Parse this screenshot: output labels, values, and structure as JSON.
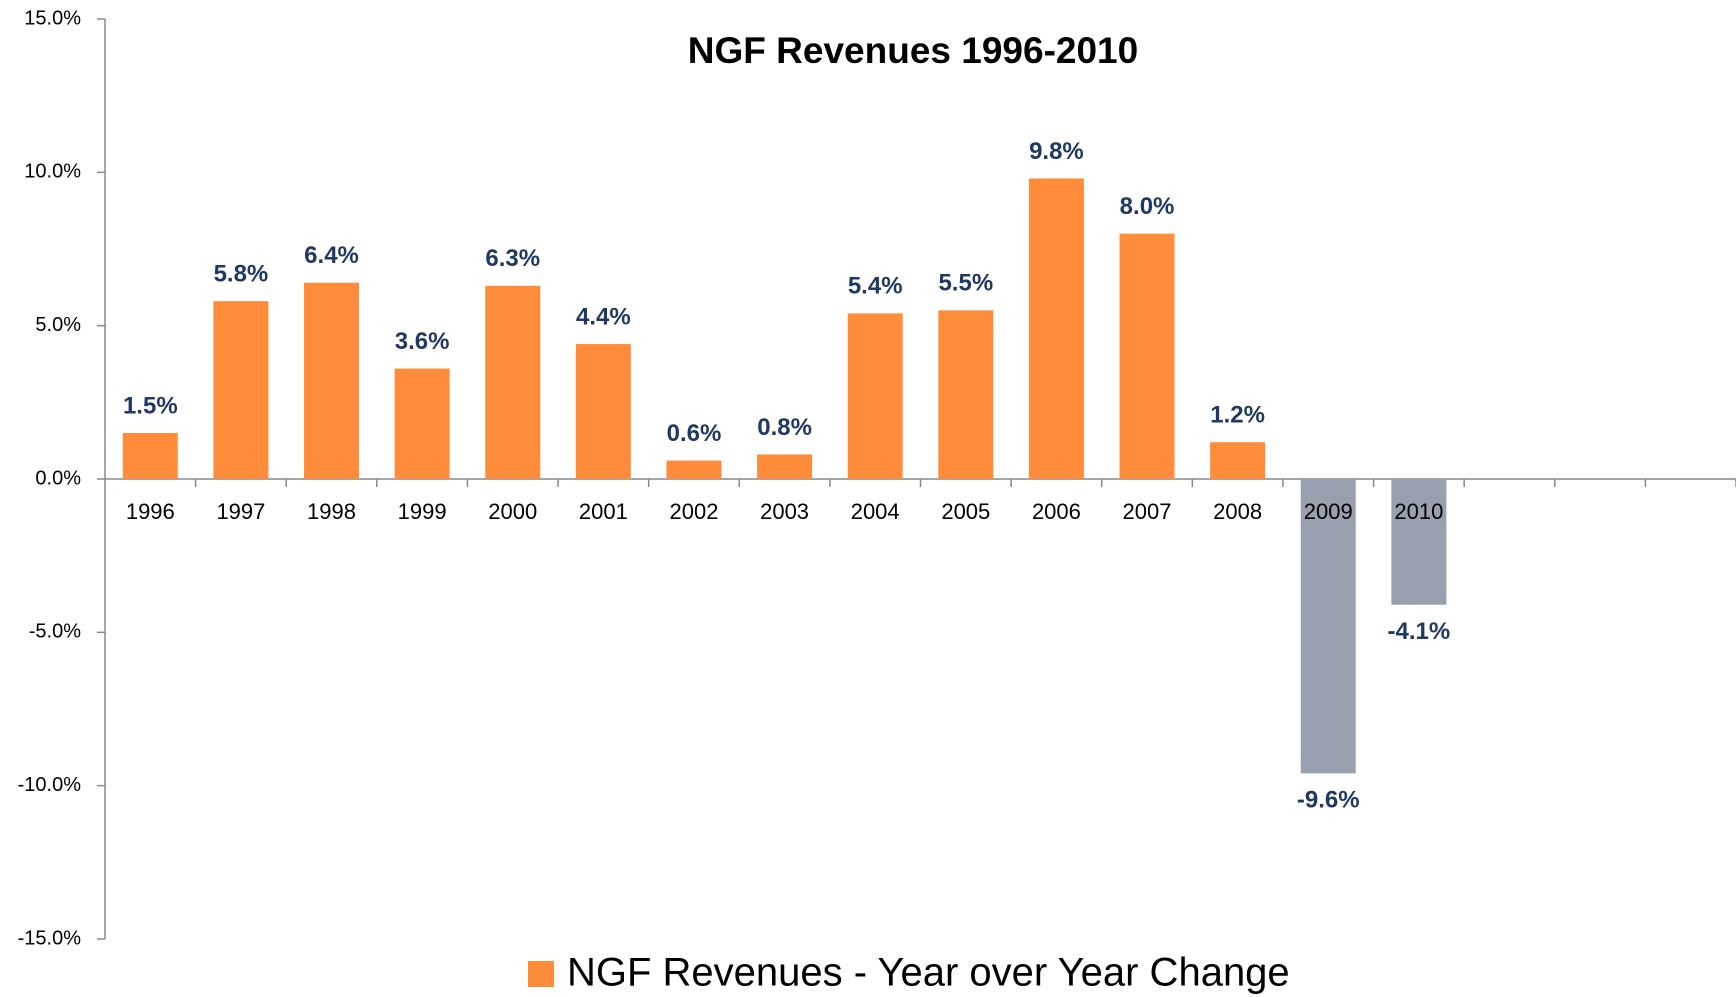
{
  "chart_data": {
    "type": "bar",
    "title": "NGF Revenues  1996-2010",
    "categories": [
      "1996",
      "1997",
      "1998",
      "1999",
      "2000",
      "2001",
      "2002",
      "2003",
      "2004",
      "2005",
      "2006",
      "2007",
      "2008",
      "2009",
      "2010",
      null,
      null,
      null
    ],
    "series": [
      {
        "name": "NGF Revenues - Year over Year Change",
        "color": "#FF8C3A",
        "negative_color": "#98A0AE",
        "values": [
          1.5,
          5.8,
          6.4,
          3.6,
          6.3,
          4.4,
          0.6,
          0.8,
          5.4,
          5.5,
          9.8,
          8.0,
          1.2,
          -9.6,
          -4.1,
          null,
          null,
          null
        ],
        "value_labels": [
          "1.5%",
          "5.8%",
          "6.4%",
          "3.6%",
          "6.3%",
          "4.4%",
          "0.6%",
          "0.8%",
          "5.4%",
          "5.5%",
          "9.8%",
          "8.0%",
          "1.2%",
          "-9.6%",
          "-4.1%",
          null,
          null,
          null
        ]
      }
    ],
    "ylim": [
      -15,
      15
    ],
    "yticks": [
      {
        "value": -15,
        "label": "-15.0%"
      },
      {
        "value": -10,
        "label": "-10.0%"
      },
      {
        "value": -5,
        "label": "-5.0%"
      },
      {
        "value": 0,
        "label": "0.0%"
      },
      {
        "value": 5,
        "label": "5.0%"
      },
      {
        "value": 10,
        "label": "10.0%"
      },
      {
        "value": 15,
        "label": "15.0%"
      }
    ],
    "legend": "bottom"
  }
}
